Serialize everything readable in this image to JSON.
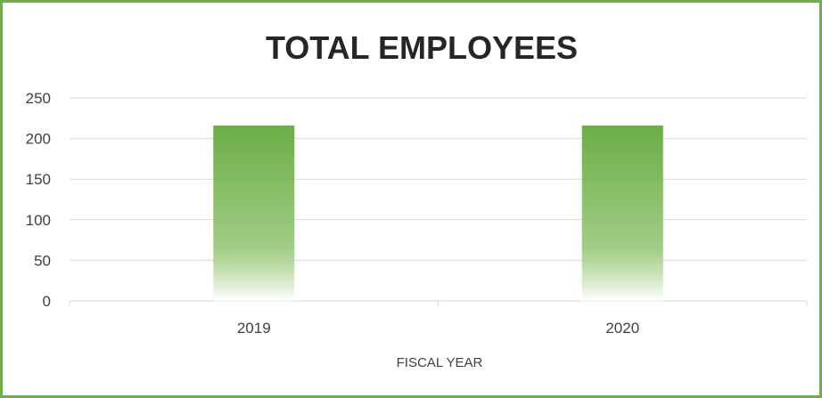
{
  "chart_data": {
    "type": "bar",
    "title": "TOTAL EMPLOYEES",
    "categories": [
      "2019",
      "2020"
    ],
    "values": [
      216,
      216
    ],
    "xlabel": "FISCAL YEAR",
    "ylabel": "",
    "ylim": [
      0,
      250
    ],
    "yticks": [
      0,
      50,
      100,
      150,
      200,
      250
    ],
    "grid": true,
    "legend": "none",
    "colors": {
      "bar": "#6aad45",
      "frame": "#6db04a",
      "grid": "#d9d9d9"
    }
  }
}
